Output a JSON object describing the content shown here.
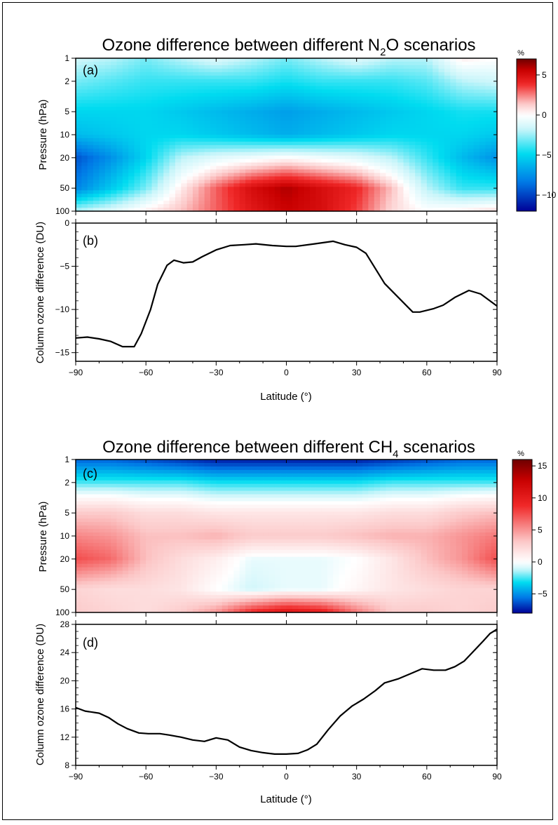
{
  "figure": {
    "top_title_main": "Ozone difference between different N",
    "top_title_sub": "2",
    "top_title_end": "O scenarios",
    "bottom_title_main": "Ozone difference between different CH",
    "bottom_title_sub": "4",
    "bottom_title_end": " scenarios",
    "xlabel": "Latitude (°)",
    "pressure_label": "Pressure (hPa)",
    "column_label": "Column ozone difference (DU)",
    "cbar_unit": "%"
  },
  "chart_data": [
    {
      "id": "a",
      "panel_label": "(a)",
      "type": "heatmap",
      "ylabel": "Pressure (hPa)",
      "xlim": [
        -90,
        90
      ],
      "yticks": [
        1,
        2,
        5,
        10,
        20,
        50,
        100
      ],
      "yscale": "log-reversed",
      "colorbar": {
        "min": -12,
        "max": 7,
        "ticks": [
          5,
          0,
          -5,
          -10
        ],
        "unit": "%"
      },
      "latitudes": [
        -90,
        -75,
        -60,
        -45,
        -30,
        -15,
        0,
        15,
        30,
        45,
        60,
        75,
        90
      ],
      "pressures": [
        1,
        2,
        5,
        10,
        20,
        50,
        100
      ],
      "values": [
        [
          -1.5,
          -2,
          -3,
          -2,
          -1,
          -2,
          -3,
          -2,
          -1,
          -2,
          -2,
          0.5,
          0
        ],
        [
          -3,
          -3.5,
          -4,
          -4,
          -4,
          -4,
          -4.5,
          -4,
          -4,
          -4,
          -3.5,
          -2,
          -1.5
        ],
        [
          -5,
          -5,
          -5,
          -5.5,
          -6,
          -6.5,
          -7,
          -6.5,
          -6,
          -5.5,
          -5,
          -4.5,
          -4.5
        ],
        [
          -6,
          -5.5,
          -5,
          -5,
          -5.5,
          -6,
          -6.5,
          -6,
          -5.5,
          -5,
          -5,
          -5,
          -5.5
        ],
        [
          -9.5,
          -7.5,
          -5,
          -2,
          -1,
          -0.5,
          0,
          -0.5,
          -1,
          -2,
          -4,
          -6,
          -7.5
        ],
        [
          -8,
          -5.5,
          -3,
          0.5,
          3,
          5,
          6,
          5,
          4,
          1.5,
          -2,
          -4,
          -4
        ],
        [
          -2,
          -1,
          0.5,
          1.5,
          3,
          4.5,
          5.5,
          5,
          3.5,
          1,
          0,
          0.5,
          1
        ]
      ]
    },
    {
      "id": "b",
      "panel_label": "(b)",
      "type": "line",
      "ylabel": "Column ozone difference (DU)",
      "xlabel": "Latitude (°)",
      "xlim": [
        -90,
        90
      ],
      "ylim": [
        -16,
        0
      ],
      "xticks": [
        -90,
        -60,
        -30,
        0,
        30,
        60,
        90
      ],
      "yticks": [
        0,
        -5,
        -10,
        -15
      ],
      "x": [
        -90,
        -85,
        -80,
        -75,
        -70,
        -65,
        -62,
        -58,
        -55,
        -51,
        -48,
        -44,
        -40,
        -36,
        -30,
        -24,
        -18,
        -13,
        -6,
        0,
        4,
        12,
        20,
        25,
        30,
        34,
        42,
        54,
        57,
        63,
        67,
        72,
        78,
        83,
        90
      ],
      "y": [
        -13.3,
        -13.2,
        -13.4,
        -13.7,
        -14.3,
        -14.3,
        -12.8,
        -10,
        -7.1,
        -4.9,
        -4.3,
        -4.6,
        -4.5,
        -3.9,
        -3.1,
        -2.6,
        -2.5,
        -2.4,
        -2.6,
        -2.7,
        -2.7,
        -2.4,
        -2.1,
        -2.5,
        -2.8,
        -3.5,
        -7,
        -10.3,
        -10.3,
        -9.9,
        -9.5,
        -8.6,
        -7.8,
        -8.2,
        -9.6
      ]
    },
    {
      "id": "c",
      "panel_label": "(c)",
      "type": "heatmap",
      "ylabel": "Pressure (hPa)",
      "xlim": [
        -90,
        90
      ],
      "yticks": [
        1,
        2,
        5,
        10,
        20,
        50,
        100
      ],
      "yscale": "log-reversed",
      "colorbar": {
        "min": -8,
        "max": 16,
        "ticks": [
          15,
          10,
          5,
          0,
          -5
        ],
        "unit": "%"
      },
      "latitudes": [
        -90,
        -75,
        -60,
        -45,
        -30,
        -15,
        0,
        15,
        30,
        45,
        60,
        75,
        90
      ],
      "pressures": [
        1,
        2,
        5,
        10,
        20,
        50,
        100
      ],
      "values": [
        [
          -6,
          -6,
          -6.5,
          -7,
          -7.5,
          -7.5,
          -7.5,
          -7.5,
          -7.5,
          -7,
          -6.5,
          -6,
          -6
        ],
        [
          -2.5,
          -2.5,
          -2.5,
          -2.5,
          -3,
          -3,
          -3,
          -3,
          -3,
          -2.5,
          -2.5,
          -2.5,
          -2.5
        ],
        [
          3,
          3,
          2,
          2,
          1.5,
          1.5,
          1.5,
          1.5,
          1.5,
          2,
          2,
          3,
          3.5
        ],
        [
          5.5,
          5,
          3.5,
          3.5,
          4,
          3,
          3,
          3,
          3.5,
          4,
          4,
          5,
          6
        ],
        [
          7.5,
          6.5,
          3.5,
          2,
          1,
          -0.5,
          -0.5,
          -0.5,
          0,
          1.5,
          3.5,
          5,
          7.5
        ],
        [
          2.5,
          2,
          2,
          1.5,
          0,
          -1,
          -0.5,
          -0.5,
          0.5,
          1.5,
          2,
          2.5,
          2.5
        ],
        [
          3,
          2.5,
          2,
          3,
          5,
          9,
          11,
          10,
          6,
          3,
          3,
          2.5,
          3
        ]
      ]
    },
    {
      "id": "d",
      "panel_label": "(d)",
      "type": "line",
      "ylabel": "Column ozone difference (DU)",
      "xlabel": "Latitude (°)",
      "xlim": [
        -90,
        90
      ],
      "ylim": [
        8,
        28
      ],
      "xticks": [
        -90,
        -60,
        -30,
        0,
        30,
        60,
        90
      ],
      "yticks": [
        8,
        12,
        16,
        20,
        24,
        28
      ],
      "x": [
        -90,
        -86,
        -80,
        -76,
        -72,
        -68,
        -63,
        -59,
        -54,
        -50,
        -45,
        -40,
        -35,
        -30,
        -25,
        -20,
        -15,
        -10,
        -5,
        0,
        5,
        9,
        13,
        18,
        23,
        28,
        33,
        38,
        42,
        48,
        53,
        58,
        63,
        68,
        72,
        76,
        80,
        84,
        87,
        90
      ],
      "y": [
        16.2,
        15.7,
        15.4,
        14.8,
        13.9,
        13.2,
        12.6,
        12.5,
        12.5,
        12.3,
        12,
        11.6,
        11.4,
        11.9,
        11.6,
        10.6,
        10.1,
        9.8,
        9.6,
        9.6,
        9.7,
        10.2,
        11,
        13.1,
        15,
        16.4,
        17.4,
        18.6,
        19.7,
        20.3,
        21,
        21.7,
        21.5,
        21.5,
        22,
        22.8,
        24.2,
        25.6,
        26.7,
        27.3
      ]
    }
  ]
}
